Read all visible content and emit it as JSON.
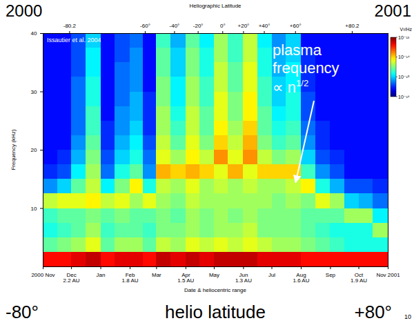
{
  "chart_data": {
    "type": "heatmap",
    "x_label": "Date & heliocentric range",
    "y_label": "Frequency (kHz)",
    "xlim": [
      "2000-11-01",
      "2001-11-01"
    ],
    "xticks": [
      {
        "value": "2000-11-01",
        "label": "2000 Nov"
      },
      {
        "value": "2000-12-01",
        "label": "Dec\n2.2 AU"
      },
      {
        "value": "2001-01-01",
        "label": "Jan"
      },
      {
        "value": "2001-02-01",
        "label": "Feb\n1.8 AU"
      },
      {
        "value": "2001-03-01",
        "label": "Mar"
      },
      {
        "value": "2001-04-01",
        "label": "Apr\n1.5 AU"
      },
      {
        "value": "2001-05-01",
        "label": "May"
      },
      {
        "value": "2001-06-01",
        "label": "Jun\n1.3 AU"
      },
      {
        "value": "2001-07-01",
        "label": "Jul"
      },
      {
        "value": "2001-08-01",
        "label": "Aug\n1.6 AU"
      },
      {
        "value": "2001-09-01",
        "label": "Sep"
      },
      {
        "value": "2001-10-01",
        "label": "Oct\n1.9 AU"
      },
      {
        "value": "2001-11-01",
        "label": "Nov 2001"
      }
    ],
    "ylim": [
      0,
      40
    ],
    "yticks": [
      10,
      20,
      30,
      40
    ],
    "top_axis": {
      "label": "Heliographic Latitude",
      "ticks": [
        {
          "value": "2000-11-29",
          "label": "-80.2"
        },
        {
          "value": "2001-02-17",
          "label": "-60°"
        },
        {
          "value": "2001-03-20",
          "label": "-40°"
        },
        {
          "value": "2001-04-14",
          "label": "-20°"
        },
        {
          "value": "2001-05-10",
          "label": "0°"
        },
        {
          "value": "2001-06-01",
          "label": "+20°"
        },
        {
          "value": "2001-06-23",
          "label": "+40°"
        },
        {
          "value": "2001-07-26",
          "label": "+60°"
        },
        {
          "value": "2001-09-24",
          "label": "+80.2"
        }
      ]
    },
    "cells": {
      "x_edges": [
        "2000-11-01",
        "2000-11-16",
        "2000-12-01",
        "2000-12-16",
        "2001-01-01",
        "2001-01-16",
        "2001-02-01",
        "2001-02-15",
        "2001-03-01",
        "2001-03-16",
        "2001-04-01",
        "2001-04-16",
        "2001-05-01",
        "2001-05-16",
        "2001-06-01",
        "2001-06-16",
        "2001-07-01",
        "2001-07-16",
        "2001-08-01",
        "2001-08-16",
        "2001-09-01",
        "2001-09-16",
        "2001-10-01",
        "2001-10-16",
        "2001-11-01"
      ],
      "y_edges": [
        0,
        2.5,
        5,
        7.5,
        10,
        12.5,
        15,
        17.5,
        20,
        22.5,
        25,
        27.5,
        30,
        32.5,
        35,
        37.5,
        40
      ],
      "values": [
        [
          -13.4,
          -14.6,
          -14.8,
          -14.7,
          -14.3,
          -15.2,
          -15.5,
          -15.6,
          -15.6,
          -15.6,
          -15.6,
          -15.6,
          -15.6,
          -15.6,
          -15.6,
          -15.6
        ],
        [
          -13.4,
          -14.5,
          -14.7,
          -14.6,
          -14.2,
          -15.0,
          -15.4,
          -15.5,
          -15.6,
          -15.6,
          -15.6,
          -15.6,
          -15.6,
          -15.6,
          -15.6,
          -15.6
        ],
        [
          -13.3,
          -14.4,
          -14.6,
          -14.6,
          -14.2,
          -14.6,
          -14.9,
          -15.1,
          -15.2,
          -15.3,
          -15.3,
          -15.3,
          -15.3,
          -15.4,
          -15.4,
          -15.4
        ],
        [
          -13.2,
          -14.2,
          -14.4,
          -14.5,
          -14.1,
          -14.3,
          -14.4,
          -14.5,
          -14.6,
          -14.7,
          -14.7,
          -14.8,
          -14.8,
          -14.9,
          -14.9,
          -15.0
        ],
        [
          -13.4,
          -14.6,
          -14.7,
          -14.6,
          -14.3,
          -14.9,
          -15.3,
          -15.4,
          -15.5,
          -15.5,
          -15.6,
          -15.6,
          -15.6,
          -15.6,
          -15.6,
          -15.6
        ],
        [
          -13.3,
          -14.4,
          -14.6,
          -14.5,
          -14.2,
          -14.5,
          -14.8,
          -15.0,
          -15.1,
          -15.2,
          -15.2,
          -15.3,
          -15.3,
          -15.3,
          -15.4,
          -15.4
        ],
        [
          -13.3,
          -14.4,
          -14.6,
          -14.6,
          -14.4,
          -14.1,
          -14.6,
          -14.8,
          -14.9,
          -15.0,
          -15.1,
          -15.1,
          -15.2,
          -15.2,
          -15.2,
          -15.3
        ],
        [
          -13.4,
          -14.6,
          -14.7,
          -14.6,
          -14.2,
          -14.8,
          -15.2,
          -15.3,
          -15.4,
          -15.5,
          -15.5,
          -15.5,
          -15.6,
          -15.6,
          -15.6,
          -15.6
        ],
        [
          -13.2,
          -14.3,
          -14.5,
          -14.5,
          -14.4,
          -14.3,
          -13.9,
          -14.2,
          -14.3,
          -14.4,
          -14.4,
          -14.5,
          -14.5,
          -14.6,
          -14.6,
          -14.7
        ],
        [
          -13.3,
          -14.4,
          -14.5,
          -14.6,
          -14.5,
          -14.4,
          -14.0,
          -14.4,
          -14.6,
          -14.7,
          -14.8,
          -14.9,
          -14.9,
          -15.0,
          -15.0,
          -15.1
        ],
        [
          -13.2,
          -14.2,
          -14.4,
          -14.4,
          -14.3,
          -14.2,
          -13.9,
          -14.1,
          -14.2,
          -14.3,
          -14.3,
          -14.4,
          -14.4,
          -14.5,
          -14.5,
          -14.6
        ],
        [
          -13.3,
          -14.3,
          -14.5,
          -14.5,
          -14.4,
          -14.4,
          -14.0,
          -14.3,
          -14.5,
          -14.6,
          -14.6,
          -14.7,
          -14.7,
          -14.8,
          -14.8,
          -14.9
        ],
        [
          -13.2,
          -14.2,
          -14.4,
          -14.4,
          -14.4,
          -14.3,
          -14.2,
          -13.8,
          -14.0,
          -14.1,
          -14.2,
          -14.2,
          -14.3,
          -14.3,
          -14.4,
          -14.4
        ],
        [
          -13.2,
          -14.3,
          -14.4,
          -14.5,
          -14.4,
          -14.4,
          -13.9,
          -14.2,
          -14.3,
          -14.4,
          -14.5,
          -14.5,
          -14.6,
          -14.6,
          -14.7,
          -14.7
        ],
        [
          -13.2,
          -14.2,
          -14.3,
          -14.4,
          -14.4,
          -14.3,
          -14.2,
          -13.8,
          -13.9,
          -14.0,
          -14.1,
          -14.1,
          -14.2,
          -14.2,
          -14.3,
          -14.3
        ],
        [
          -13.3,
          -14.3,
          -14.5,
          -14.5,
          -14.4,
          -14.4,
          -14.0,
          -14.3,
          -14.5,
          -14.6,
          -14.6,
          -14.7,
          -14.7,
          -14.8,
          -14.8,
          -14.9
        ],
        [
          -13.3,
          -14.4,
          -14.5,
          -14.5,
          -14.5,
          -14.4,
          -14.0,
          -14.5,
          -14.7,
          -14.8,
          -14.9,
          -15.0,
          -15.0,
          -15.1,
          -15.1,
          -15.2
        ],
        [
          -13.3,
          -14.4,
          -14.5,
          -14.5,
          -14.4,
          -14.3,
          -14.0,
          -14.4,
          -14.6,
          -14.7,
          -14.8,
          -14.8,
          -14.9,
          -14.9,
          -15.0,
          -15.0
        ],
        [
          -13.4,
          -14.5,
          -14.6,
          -14.6,
          -14.5,
          -14.1,
          -14.7,
          -15.0,
          -15.2,
          -15.3,
          -15.4,
          -15.4,
          -15.5,
          -15.5,
          -15.5,
          -15.6
        ],
        [
          -13.4,
          -14.6,
          -14.7,
          -14.6,
          -14.2,
          -14.8,
          -15.2,
          -15.4,
          -15.5,
          -15.5,
          -15.6,
          -15.6,
          -15.6,
          -15.6,
          -15.6,
          -15.6
        ],
        [
          -13.4,
          -14.7,
          -14.8,
          -14.6,
          -14.4,
          -15.1,
          -15.4,
          -15.5,
          -15.6,
          -15.6,
          -15.6,
          -15.6,
          -15.6,
          -15.6,
          -15.6,
          -15.6
        ],
        [
          -13.4,
          -14.8,
          -14.8,
          -14.4,
          -15.0,
          -15.4,
          -15.6,
          -15.6,
          -15.6,
          -15.6,
          -15.6,
          -15.6,
          -15.6,
          -15.6,
          -15.6,
          -15.6
        ],
        [
          -13.4,
          -14.8,
          -14.8,
          -14.4,
          -15.1,
          -15.4,
          -15.6,
          -15.6,
          -15.6,
          -15.6,
          -15.6,
          -15.6,
          -15.6,
          -15.6,
          -15.6,
          -15.6
        ],
        [
          -13.4,
          -14.8,
          -14.4,
          -14.9,
          -15.3,
          -15.5,
          -15.6,
          -15.6,
          -15.6,
          -15.6,
          -15.6,
          -15.6,
          -15.6,
          -15.6,
          -15.6,
          -15.6
        ]
      ]
    },
    "colorbar": {
      "label": "V²/Hz",
      "range": [
        -16,
        -13
      ],
      "ticks": [
        {
          "value": -16,
          "label": "10⁻¹⁶"
        },
        {
          "value": -15,
          "label": "10⁻¹⁵"
        },
        {
          "value": -14,
          "label": "10⁻¹⁴"
        },
        {
          "value": -13,
          "label": "10⁻¹³"
        }
      ]
    },
    "source": "Issautier et al. 2004",
    "annotation": {
      "lines": [
        "plasma",
        "frequency",
        "∝ n"
      ],
      "superscript": "1/2",
      "x": "2001-07-25",
      "y": 14
    },
    "overlay_texts": {
      "top_left": "2000",
      "top_right": "2001",
      "bottom_left": "-80°",
      "bottom_center": "helio latitude",
      "bottom_right": "+80°"
    },
    "page_number": 10
  }
}
